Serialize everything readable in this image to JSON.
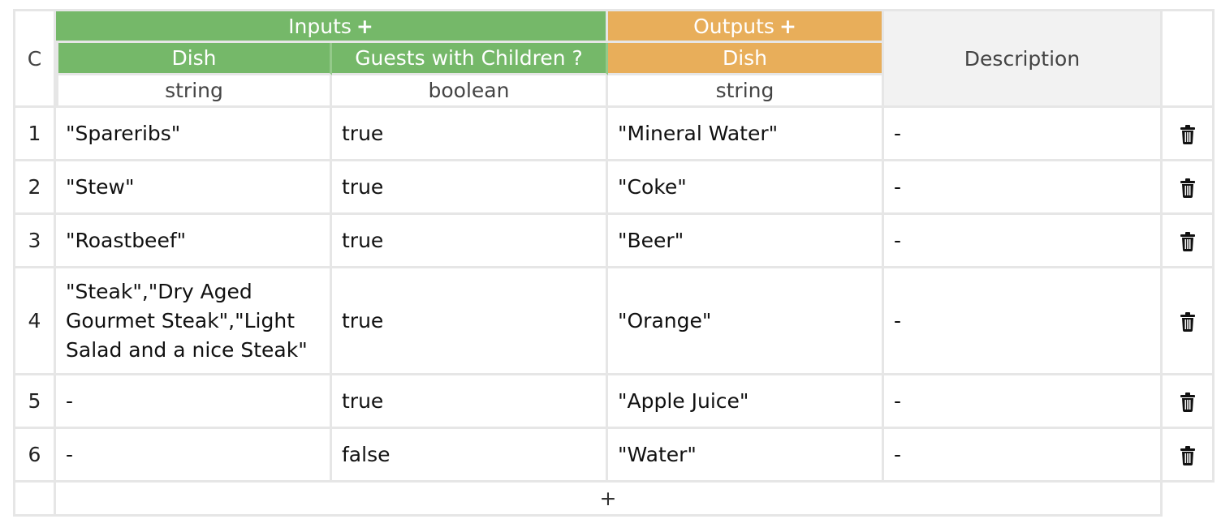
{
  "table": {
    "hit_policy": "C",
    "inputs_label": "Inputs",
    "outputs_label": "Outputs",
    "plus_glyph": "+",
    "description_label": "Description",
    "input_columns": [
      {
        "label": "Dish",
        "type": "string"
      },
      {
        "label": "Guests with Children ?",
        "type": "boolean"
      }
    ],
    "output_columns": [
      {
        "label": "Dish",
        "type": "string"
      }
    ],
    "rows": [
      {
        "num": "1",
        "in1": "\"Spareribs\"",
        "in2": "true",
        "out1": "\"Mineral Water\"",
        "desc": "-"
      },
      {
        "num": "2",
        "in1": "\"Stew\"",
        "in2": "true",
        "out1": "\"Coke\"",
        "desc": "-"
      },
      {
        "num": "3",
        "in1": "\"Roastbeef\"",
        "in2": "true",
        "out1": "\"Beer\"",
        "desc": "-"
      },
      {
        "num": "4",
        "in1": "\"Steak\",\"Dry Aged Gourmet Steak\",\"Light Salad and a nice Steak\"",
        "in2": "true",
        "out1": "\"Orange\"",
        "desc": "-"
      },
      {
        "num": "5",
        "in1": "-",
        "in2": "true",
        "out1": "\"Apple Juice\"",
        "desc": "-"
      },
      {
        "num": "6",
        "in1": "-",
        "in2": "false",
        "out1": "\"Water\"",
        "desc": "-"
      }
    ],
    "add_rule_glyph": "+",
    "colors": {
      "input_header": "#75b869",
      "output_header": "#e8ae5a",
      "description_header": "#f2f2f2",
      "grid": "#e6e6e6"
    },
    "icons": {
      "row_action": "trash-icon"
    }
  }
}
